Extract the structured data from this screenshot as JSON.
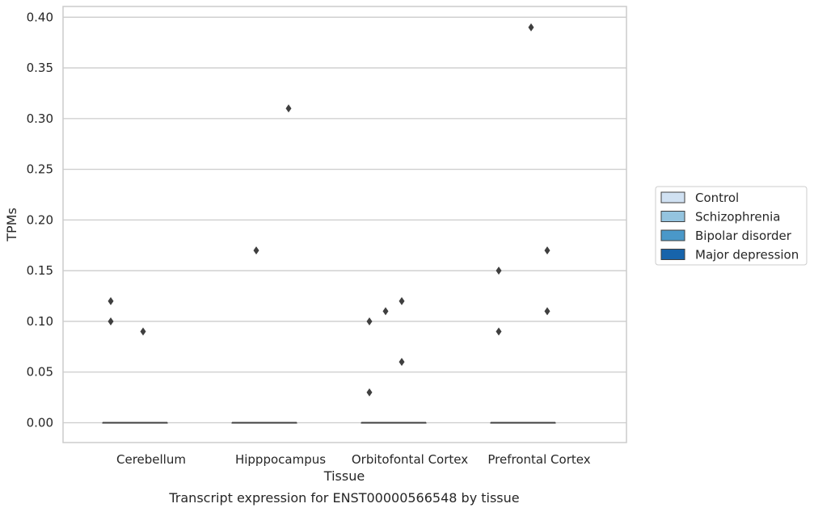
{
  "chart_data": {
    "type": "box",
    "xlabel": "Tissue",
    "ylabel": "TPMs",
    "caption": "Transcript expression for ENST00000566548 by tissue",
    "ylim": [
      -0.02,
      0.41
    ],
    "yticks": [
      0.0,
      0.05,
      0.1,
      0.15,
      0.2,
      0.25,
      0.3,
      0.35,
      0.4
    ],
    "ytick_labels": [
      "0.00",
      "0.05",
      "0.10",
      "0.15",
      "0.20",
      "0.25",
      "0.30",
      "0.35",
      "0.40"
    ],
    "grid": "horizontal",
    "legend_position": "right",
    "categories": [
      "Cerebellum",
      "Hipppocampus",
      "Orbitofontal Cortex",
      "Prefrontal Cortex"
    ],
    "series": [
      {
        "name": "Control",
        "color": "#d0e1f2",
        "boxes": [
          {
            "q1": 0,
            "median": 0,
            "q3": 0
          },
          {
            "q1": 0,
            "median": 0,
            "q3": 0
          },
          {
            "q1": 0,
            "median": 0,
            "q3": 0
          },
          {
            "q1": 0,
            "median": 0,
            "q3": 0
          }
        ],
        "outliers": [
          [
            0.12,
            0.1
          ],
          [],
          [
            0.1,
            0.03
          ],
          [
            0.15,
            0.09
          ]
        ]
      },
      {
        "name": "Schizophrenia",
        "color": "#94c4df",
        "boxes": [
          {
            "q1": 0,
            "median": 0,
            "q3": 0
          },
          {
            "q1": 0,
            "median": 0,
            "q3": 0
          },
          {
            "q1": 0,
            "median": 0,
            "q3": 0
          },
          {
            "q1": 0,
            "median": 0,
            "q3": 0
          }
        ],
        "outliers": [
          [],
          [
            0.17
          ],
          [
            0.11
          ],
          []
        ]
      },
      {
        "name": "Bipolar disorder",
        "color": "#4a98c9",
        "boxes": [
          {
            "q1": 0,
            "median": 0,
            "q3": 0
          },
          {
            "q1": 0,
            "median": 0,
            "q3": 0
          },
          {
            "q1": 0,
            "median": 0,
            "q3": 0
          },
          {
            "q1": 0,
            "median": 0,
            "q3": 0
          }
        ],
        "outliers": [
          [
            0.09
          ],
          [],
          [
            0.12,
            0.06
          ],
          [
            0.39
          ]
        ]
      },
      {
        "name": "Major depression",
        "color": "#1764ab",
        "boxes": [
          {
            "q1": 0,
            "median": 0,
            "q3": 0
          },
          {
            "q1": 0,
            "median": 0,
            "q3": 0
          },
          {
            "q1": 0,
            "median": 0,
            "q3": 0
          },
          {
            "q1": 0,
            "median": 0,
            "q3": 0
          }
        ],
        "outliers": [
          [],
          [
            0.31
          ],
          [],
          [
            0.17,
            0.11
          ]
        ]
      }
    ]
  }
}
